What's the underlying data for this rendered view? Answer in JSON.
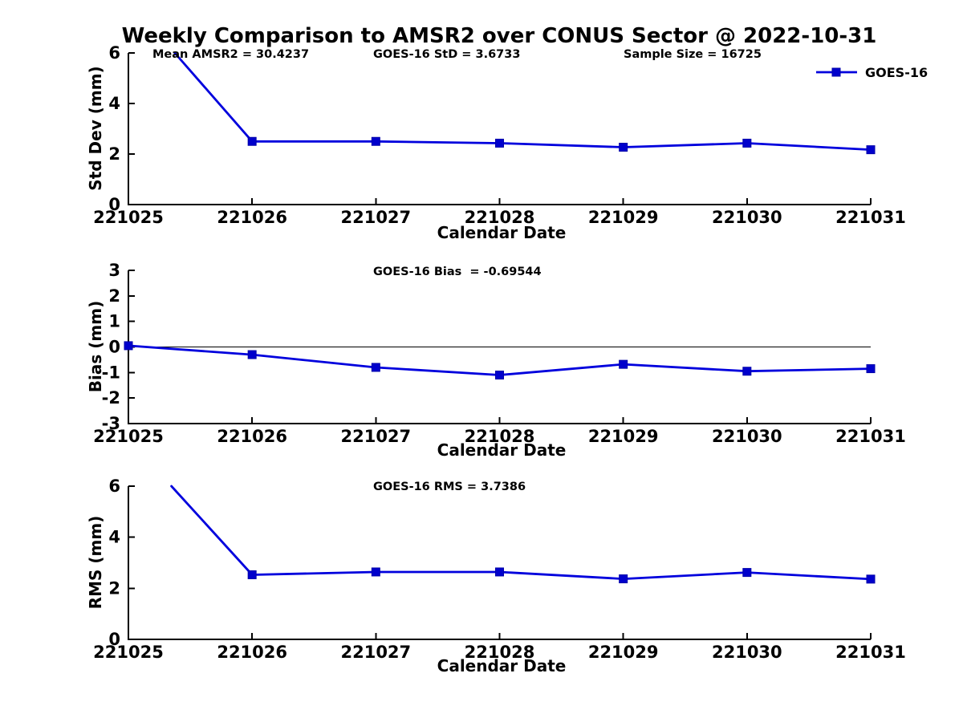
{
  "page": {
    "title": "Weekly Comparison to AMSR2 over CONUS Sector @ 2022-10-31",
    "background": "#ffffff"
  },
  "colors": {
    "line": "#0000dd",
    "marker_fill": "#0000cc",
    "marker_edge": "#0000aa",
    "axis": "#000000",
    "zero_line": "#000000",
    "text": "#000000"
  },
  "legend": {
    "series_label": "GOES-16",
    "position": "top-right"
  },
  "chart_data": [
    {
      "type": "line",
      "categories": [
        "221025",
        "221026",
        "221027",
        "221028",
        "221029",
        "221030",
        "221031"
      ],
      "series": [
        {
          "name": "GOES-16",
          "values": [
            8.1,
            2.5,
            2.5,
            2.43,
            2.27,
            2.43,
            2.17
          ]
        }
      ],
      "xlabel": "Calendar Date",
      "ylabel": "Std Dev (mm)",
      "ylim": [
        0,
        6
      ],
      "yticks": [
        0,
        2,
        4,
        6
      ],
      "grid": false,
      "zero_line": false,
      "legend_position": "top-right",
      "annotations": [
        "Mean AMSR2 = 30.4237",
        "GOES-16 StD = 3.6733",
        "Sample Size = 16725"
      ]
    },
    {
      "type": "line",
      "categories": [
        "221025",
        "221026",
        "221027",
        "221028",
        "221029",
        "221030",
        "221031"
      ],
      "series": [
        {
          "name": "GOES-16",
          "values": [
            0.05,
            -0.3,
            -0.8,
            -1.1,
            -0.68,
            -0.95,
            -0.85
          ]
        }
      ],
      "xlabel": "Calendar Date",
      "ylabel": "Bias (mm)",
      "ylim": [
        -3,
        3
      ],
      "yticks": [
        -3,
        -2,
        -1,
        0,
        1,
        2,
        3
      ],
      "grid": false,
      "zero_line": true,
      "annotations": [
        "GOES-16 Bias  = -0.69544"
      ]
    },
    {
      "type": "line",
      "categories": [
        "221025",
        "221026",
        "221027",
        "221028",
        "221029",
        "221030",
        "221031"
      ],
      "series": [
        {
          "name": "GOES-16",
          "values": [
            7.85,
            2.53,
            2.64,
            2.64,
            2.37,
            2.62,
            2.36
          ]
        }
      ],
      "xlabel": "Calendar Date",
      "ylabel": "RMS (mm)",
      "ylim": [
        0,
        6
      ],
      "yticks": [
        0,
        2,
        4,
        6
      ],
      "grid": false,
      "zero_line": false,
      "annotations": [
        "GOES-16 RMS = 3.7386"
      ]
    }
  ]
}
